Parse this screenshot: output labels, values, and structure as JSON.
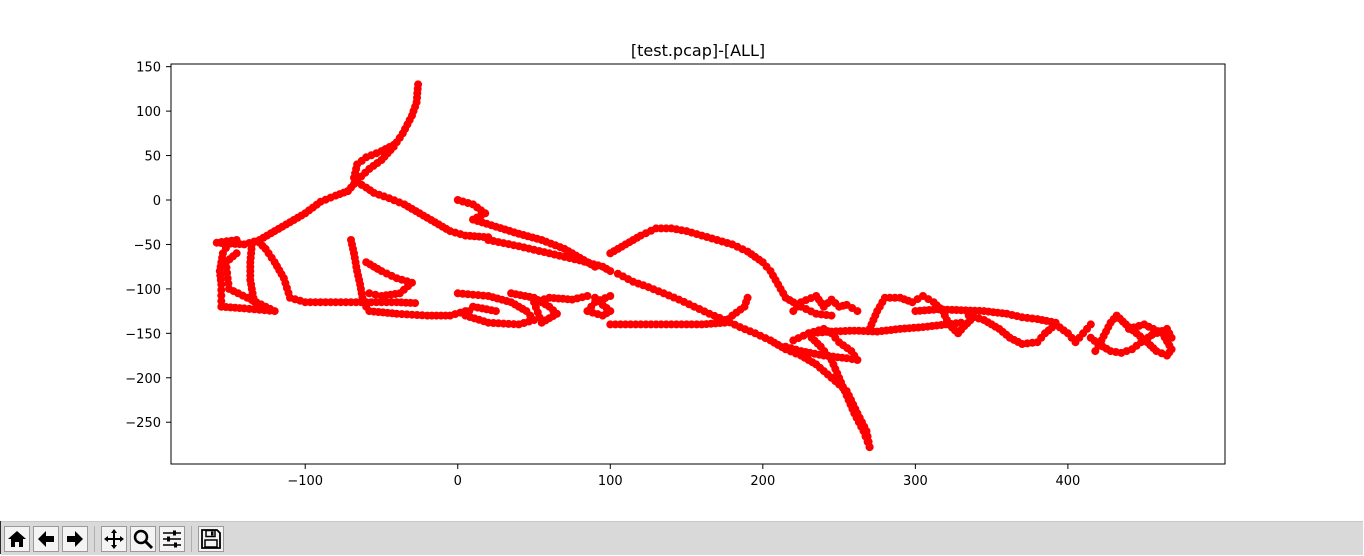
{
  "window": {
    "frame_color": "#2b2b2b"
  },
  "chart_data": {
    "type": "scatter",
    "title": "[test.pcap]-[ALL]",
    "xlabel": "",
    "ylabel": "",
    "xlim": [
      -188,
      503
    ],
    "ylim": [
      -297,
      153
    ],
    "xticks": [
      -100,
      0,
      100,
      200,
      300,
      400
    ],
    "xtick_labels": [
      "−100",
      "0",
      "100",
      "200",
      "300",
      "400"
    ],
    "yticks": [
      150,
      100,
      50,
      0,
      -50,
      -100,
      -150,
      -200,
      -250
    ],
    "ytick_labels": [
      "150",
      "100",
      "50",
      "0",
      "−50",
      "−100",
      "−150",
      "−200",
      "−250"
    ],
    "grid": false,
    "legend": "none",
    "marker_color": "#ff0000",
    "series": [
      {
        "values": [
          [
            -26,
            130
          ],
          [
            -27,
            110
          ],
          [
            -30,
            95
          ],
          [
            -36,
            75
          ],
          [
            -42,
            60
          ],
          [
            -50,
            45
          ],
          [
            -58,
            35
          ],
          [
            -66,
            22
          ],
          [
            -72,
            10
          ]
        ]
      },
      {
        "values": [
          [
            -68,
            25
          ],
          [
            -66,
            40
          ],
          [
            -60,
            48
          ],
          [
            -50,
            55
          ],
          [
            -42,
            62
          ]
        ]
      },
      {
        "values": [
          [
            -66,
            20
          ],
          [
            -60,
            14
          ],
          [
            -55,
            8
          ],
          [
            -45,
            2
          ],
          [
            -35,
            -5
          ],
          [
            -25,
            -15
          ],
          [
            -15,
            -25
          ],
          [
            -5,
            -35
          ],
          [
            5,
            -40
          ],
          [
            20,
            -42
          ]
        ]
      },
      {
        "values": [
          [
            -72,
            10
          ],
          [
            -80,
            5
          ],
          [
            -90,
            -2
          ],
          [
            -100,
            -15
          ],
          [
            -110,
            -25
          ],
          [
            -120,
            -35
          ],
          [
            -130,
            -45
          ],
          [
            -140,
            -50
          ],
          [
            -158,
            -48
          ],
          [
            -145,
            -45
          ]
        ]
      },
      {
        "values": [
          [
            -130,
            -48
          ],
          [
            -126,
            -55
          ],
          [
            -120,
            -70
          ],
          [
            -114,
            -88
          ],
          [
            -110,
            -110
          ],
          [
            -100,
            -115
          ],
          [
            -80,
            -115
          ],
          [
            -60,
            -115
          ],
          [
            -40,
            -115
          ],
          [
            -28,
            -116
          ]
        ]
      },
      {
        "values": [
          [
            -150,
            -48
          ],
          [
            -154,
            -60
          ],
          [
            -156,
            -80
          ],
          [
            -155,
            -95
          ],
          [
            -155,
            -120
          ],
          [
            -140,
            -122
          ],
          [
            -120,
            -125
          ],
          [
            -150,
            -100
          ],
          [
            -152,
            -70
          ],
          [
            -145,
            -60
          ]
        ]
      },
      {
        "values": [
          [
            -135,
            -50
          ],
          [
            -136,
            -70
          ],
          [
            -136,
            -90
          ],
          [
            -134,
            -110
          ],
          [
            -132,
            -120
          ]
        ]
      },
      {
        "values": [
          [
            -70,
            -45
          ],
          [
            -68,
            -60
          ],
          [
            -66,
            -80
          ],
          [
            -64,
            -95
          ],
          [
            -62,
            -115
          ],
          [
            -58,
            -125
          ],
          [
            -40,
            -128
          ],
          [
            -20,
            -130
          ],
          [
            -5,
            -130
          ],
          [
            5,
            -125
          ]
        ]
      },
      {
        "values": [
          [
            -60,
            -70
          ],
          [
            -50,
            -80
          ],
          [
            -40,
            -88
          ],
          [
            -30,
            -93
          ],
          [
            -38,
            -105
          ],
          [
            -50,
            -108
          ],
          [
            -58,
            -105
          ]
        ]
      },
      {
        "values": [
          [
            0,
            0
          ],
          [
            10,
            -5
          ],
          [
            18,
            -15
          ],
          [
            10,
            -22
          ],
          [
            25,
            -30
          ],
          [
            40,
            -38
          ],
          [
            55,
            -45
          ],
          [
            70,
            -55
          ],
          [
            80,
            -65
          ],
          [
            90,
            -75
          ]
        ]
      },
      {
        "values": [
          [
            20,
            -45
          ],
          [
            40,
            -52
          ],
          [
            60,
            -60
          ],
          [
            80,
            -68
          ],
          [
            95,
            -75
          ],
          [
            100,
            -80
          ]
        ]
      },
      {
        "values": [
          [
            0,
            -105
          ],
          [
            20,
            -108
          ],
          [
            35,
            -115
          ],
          [
            45,
            -125
          ],
          [
            50,
            -135
          ],
          [
            40,
            -140
          ],
          [
            20,
            -138
          ],
          [
            5,
            -130
          ],
          [
            10,
            -120
          ],
          [
            25,
            -125
          ]
        ]
      },
      {
        "values": [
          [
            35,
            -105
          ],
          [
            50,
            -110
          ],
          [
            60,
            -120
          ],
          [
            65,
            -128
          ],
          [
            55,
            -138
          ],
          [
            50,
            -115
          ],
          [
            60,
            -110
          ],
          [
            75,
            -112
          ],
          [
            85,
            -108
          ]
        ]
      },
      {
        "values": [
          [
            90,
            -110
          ],
          [
            95,
            -118
          ],
          [
            100,
            -125
          ],
          [
            95,
            -130
          ],
          [
            85,
            -125
          ],
          [
            90,
            -115
          ],
          [
            100,
            -108
          ]
        ]
      },
      {
        "values": [
          [
            100,
            -140
          ],
          [
            120,
            -140
          ],
          [
            140,
            -140
          ],
          [
            160,
            -140
          ],
          [
            175,
            -138
          ],
          [
            180,
            -130
          ],
          [
            188,
            -120
          ],
          [
            190,
            -110
          ]
        ]
      },
      {
        "values": [
          [
            100,
            -60
          ],
          [
            110,
            -50
          ],
          [
            120,
            -40
          ],
          [
            130,
            -32
          ],
          [
            140,
            -32
          ],
          [
            150,
            -35
          ],
          [
            160,
            -40
          ],
          [
            170,
            -45
          ],
          [
            180,
            -50
          ],
          [
            190,
            -58
          ],
          [
            200,
            -70
          ],
          [
            205,
            -80
          ],
          [
            210,
            -95
          ],
          [
            215,
            -110
          ],
          [
            225,
            -120
          ],
          [
            235,
            -128
          ],
          [
            245,
            -130
          ]
        ]
      },
      {
        "values": [
          [
            105,
            -83
          ],
          [
            115,
            -92
          ],
          [
            125,
            -98
          ],
          [
            135,
            -105
          ],
          [
            145,
            -112
          ],
          [
            155,
            -120
          ],
          [
            165,
            -128
          ],
          [
            175,
            -135
          ],
          [
            185,
            -143
          ],
          [
            195,
            -150
          ],
          [
            205,
            -158
          ],
          [
            215,
            -168
          ],
          [
            225,
            -175
          ],
          [
            235,
            -185
          ],
          [
            245,
            -200
          ],
          [
            255,
            -215
          ],
          [
            262,
            -240
          ],
          [
            268,
            -260
          ],
          [
            270,
            -278
          ]
        ]
      },
      {
        "values": [
          [
            270,
            -278
          ],
          [
            266,
            -260
          ],
          [
            260,
            -240
          ],
          [
            255,
            -220
          ],
          [
            250,
            -200
          ],
          [
            245,
            -180
          ],
          [
            238,
            -165
          ],
          [
            232,
            -155
          ]
        ]
      },
      {
        "values": [
          [
            215,
            -165
          ],
          [
            225,
            -170
          ],
          [
            240,
            -175
          ],
          [
            255,
            -178
          ],
          [
            262,
            -180
          ],
          [
            258,
            -170
          ],
          [
            250,
            -160
          ],
          [
            245,
            -150
          ],
          [
            240,
            -145
          ],
          [
            230,
            -150
          ],
          [
            220,
            -158
          ]
        ]
      },
      {
        "values": [
          [
            220,
            -125
          ],
          [
            225,
            -115
          ],
          [
            235,
            -108
          ],
          [
            240,
            -120
          ],
          [
            245,
            -112
          ],
          [
            250,
            -120
          ],
          [
            255,
            -118
          ],
          [
            262,
            -125
          ]
        ]
      },
      {
        "values": [
          [
            230,
            -150
          ],
          [
            245,
            -148
          ],
          [
            260,
            -147
          ],
          [
            275,
            -148
          ],
          [
            290,
            -145
          ],
          [
            305,
            -143
          ],
          [
            320,
            -140
          ],
          [
            330,
            -138
          ]
        ]
      },
      {
        "values": [
          [
            270,
            -145
          ],
          [
            275,
            -125
          ],
          [
            280,
            -110
          ],
          [
            290,
            -110
          ],
          [
            298,
            -115
          ],
          [
            305,
            -108
          ],
          [
            312,
            -115
          ],
          [
            318,
            -125
          ],
          [
            322,
            -140
          ],
          [
            328,
            -150
          ],
          [
            332,
            -142
          ],
          [
            338,
            -132
          ]
        ]
      },
      {
        "values": [
          [
            300,
            -125
          ],
          [
            315,
            -123
          ],
          [
            330,
            -124
          ],
          [
            345,
            -125
          ],
          [
            360,
            -128
          ],
          [
            370,
            -132
          ],
          [
            380,
            -134
          ],
          [
            392,
            -138
          ]
        ]
      },
      {
        "values": [
          [
            335,
            -130
          ],
          [
            345,
            -135
          ],
          [
            355,
            -145
          ],
          [
            362,
            -155
          ],
          [
            370,
            -162
          ],
          [
            380,
            -160
          ],
          [
            385,
            -150
          ],
          [
            392,
            -140
          ],
          [
            400,
            -150
          ],
          [
            405,
            -160
          ],
          [
            410,
            -150
          ],
          [
            415,
            -140
          ]
        ]
      },
      {
        "values": [
          [
            418,
            -170
          ],
          [
            422,
            -158
          ],
          [
            425,
            -148
          ],
          [
            428,
            -138
          ],
          [
            432,
            -130
          ],
          [
            438,
            -140
          ],
          [
            445,
            -150
          ],
          [
            452,
            -160
          ],
          [
            458,
            -170
          ],
          [
            465,
            -175
          ],
          [
            468,
            -168
          ],
          [
            462,
            -150
          ],
          [
            450,
            -140
          ],
          [
            440,
            -145
          ]
        ]
      },
      {
        "values": [
          [
            415,
            -155
          ],
          [
            420,
            -162
          ],
          [
            428,
            -170
          ],
          [
            435,
            -172
          ],
          [
            442,
            -168
          ],
          [
            448,
            -160
          ],
          [
            455,
            -152
          ],
          [
            465,
            -145
          ],
          [
            468,
            -155
          ]
        ]
      }
    ]
  },
  "toolbar": {
    "buttons": [
      {
        "icon": "home-icon"
      },
      {
        "icon": "arrow-left-icon"
      },
      {
        "icon": "arrow-right-icon"
      },
      {
        "icon": "pan-icon"
      },
      {
        "icon": "zoom-icon"
      },
      {
        "icon": "sliders-icon"
      },
      {
        "icon": "save-icon"
      }
    ]
  }
}
